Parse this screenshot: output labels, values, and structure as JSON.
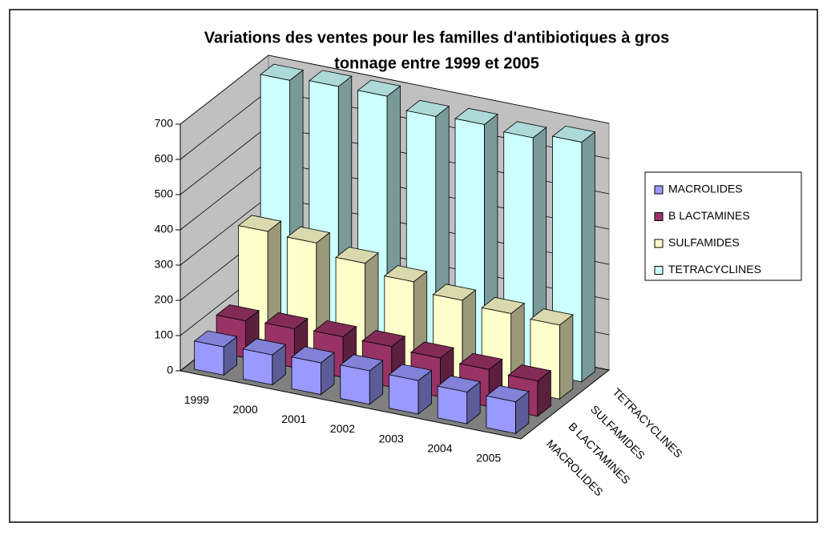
{
  "chart_data": {
    "type": "bar3d",
    "title": [
      "Variations des ventes pour les familles d'antibiotiques à gros",
      "tonnage entre 1999 et 2005"
    ],
    "categories": [
      "1999",
      "2000",
      "2001",
      "2002",
      "2003",
      "2004",
      "2005"
    ],
    "series": [
      {
        "name": "MACROLIDES",
        "color": "#9999ff",
        "values": [
          80,
          85,
          90,
          95,
          95,
          90,
          90
        ]
      },
      {
        "name": "B LACTAMINES",
        "color": "#993366",
        "values": [
          105,
          110,
          115,
          115,
          110,
          105,
          100
        ]
      },
      {
        "name": "SULFAMIDES",
        "color": "#ffffcc",
        "values": [
          310,
          305,
          275,
          250,
          225,
          215,
          210
        ]
      },
      {
        "name": "TETRACYCLINES",
        "color": "#ccffff",
        "values": [
          690,
          700,
          700,
          670,
          675,
          665,
          680
        ]
      }
    ],
    "ylim": [
      0,
      700
    ],
    "yticks": [
      0,
      100,
      200,
      300,
      400,
      500,
      600,
      700
    ],
    "grid": true,
    "legend": "right"
  }
}
